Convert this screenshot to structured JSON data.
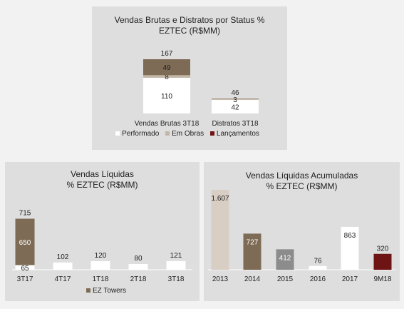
{
  "colors": {
    "performado": "#ffffff",
    "em_obras": "#c2b6a6",
    "lancamentos": "#6e1414",
    "brown": "#7e6b55",
    "light": "#ffffff",
    "beige": "#d8cec4",
    "grey": "#8c8c8c",
    "panel": "#dedede"
  },
  "panels": {
    "top_title_line1": "Vendas Brutas e Distratos por Status %",
    "top_title_line2": "EZTEC (R$MM)",
    "left_title_line1": "Vendas Líquidas",
    "left_title_line2": "% EZTEC (R$MM)",
    "right_title_line1": "Vendas Líquidas Acumuladas",
    "right_title_line2": "% EZTEC (R$MM)"
  },
  "legends": {
    "top": [
      "Performado",
      "Em Obras",
      "Lançamentos"
    ],
    "left": "EZ Towers"
  },
  "chart_data": [
    {
      "type": "bar",
      "stacked": true,
      "title": "Vendas Brutas e Distratos por Status % EZTEC (R$MM)",
      "categories": [
        "Vendas Brutas 3T18",
        "Distratos 3T18"
      ],
      "series": [
        {
          "name": "Performado",
          "values": [
            110,
            42
          ]
        },
        {
          "name": "Em Obras",
          "values": [
            8,
            3
          ]
        },
        {
          "name": "Lançamentos",
          "values": [
            49,
            1
          ]
        }
      ],
      "totals": [
        167,
        46
      ],
      "segment_labels": [
        [
          "110",
          "8",
          "49"
        ],
        [
          "42",
          "3",
          ""
        ]
      ],
      "total_labels": [
        "167",
        "46"
      ],
      "legend_position": "bottom",
      "grid": false
    },
    {
      "type": "bar",
      "stacked": true,
      "title": "Vendas Líquidas % EZTEC (R$MM)",
      "categories": [
        "3T17",
        "4T17",
        "1T18",
        "2T18",
        "3T18"
      ],
      "series": [
        {
          "name": "",
          "values": [
            65,
            102,
            120,
            80,
            121
          ]
        },
        {
          "name": "EZ Towers",
          "values": [
            650,
            0,
            0,
            0,
            0
          ]
        }
      ],
      "segment_labels": [
        [
          "65",
          "650"
        ],
        [
          "102",
          ""
        ],
        [
          "120",
          ""
        ],
        [
          "80",
          ""
        ],
        [
          "121",
          ""
        ]
      ],
      "total_labels": [
        "715",
        "102",
        "120",
        "80",
        "121"
      ],
      "legend_position": "bottom",
      "grid": false
    },
    {
      "type": "bar",
      "title": "Vendas Líquidas Acumuladas % EZTEC (R$MM)",
      "categories": [
        "2013",
        "2014",
        "2015",
        "2016",
        "2017",
        "9M18"
      ],
      "values": [
        1607,
        727,
        412,
        76,
        863,
        320
      ],
      "value_labels": [
        "1.607",
        "727",
        "412",
        "76",
        "863",
        "320"
      ],
      "grid": false
    }
  ]
}
